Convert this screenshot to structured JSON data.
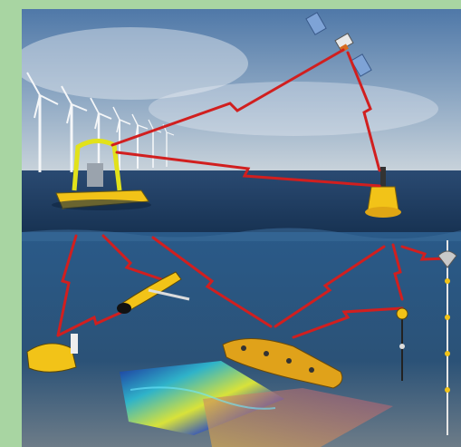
{
  "image": {
    "frame_color": "#a8d5a2",
    "sky_top": "#6b8fb8",
    "sea_surface": "#1f3b63",
    "underwater": "#1f4b78",
    "seabed": "#6c7d8a",
    "link_color": "#d11f1f",
    "vehicle_color": "#f2c318"
  }
}
